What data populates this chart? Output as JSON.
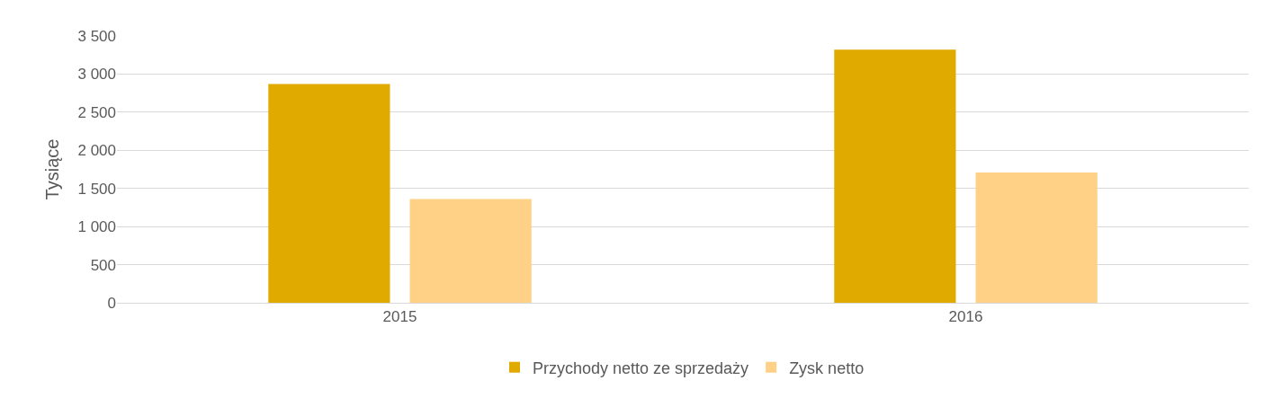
{
  "chart_data": {
    "type": "bar",
    "ylabel": "Tysiące",
    "categories": [
      "2015",
      "2016"
    ],
    "series": [
      {
        "name": "Przychody netto ze sprzedaży",
        "color": "#e0aa00",
        "values": [
          2870,
          3320
        ]
      },
      {
        "name": "Zysk netto",
        "color": "#fed186",
        "values": [
          1360,
          1710
        ]
      }
    ],
    "ylim": [
      0,
      3500
    ],
    "yticks": [
      0,
      500,
      {
        "value": 1000,
        "label": "1 000"
      },
      {
        "value": 1500,
        "label": "1 500"
      },
      {
        "value": 2000,
        "label": "2 000"
      },
      {
        "value": 2500,
        "label": "2 500"
      },
      {
        "value": 3000,
        "label": "3 000"
      },
      {
        "value": 3500,
        "label": "3 500"
      }
    ],
    "grid": "y",
    "legend": "bottom"
  }
}
